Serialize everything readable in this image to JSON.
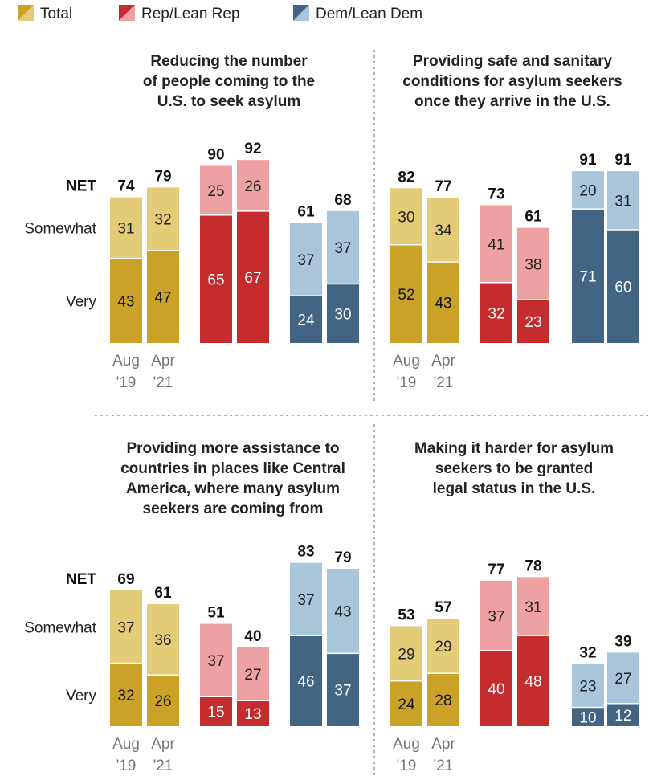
{
  "legend": {
    "total": "Total",
    "rep": "Rep/Lean Rep",
    "dem": "Dem/Lean Dem"
  },
  "colors": {
    "total_very": "#c9a227",
    "total_somewhat": "#e3cb77",
    "rep_very": "#c42c2e",
    "rep_somewhat": "#eea1a3",
    "dem_very": "#426583",
    "dem_somewhat": "#a8c5da"
  },
  "row_labels": {
    "net": "NET",
    "somewhat": "Somewhat",
    "very": "Very"
  },
  "chart_data": [
    {
      "type": "bar",
      "title": [
        "Reducing the number",
        "of people coming to the",
        "U.S. to seek asylum"
      ],
      "groups": [
        "Total",
        "Rep/Lean Rep",
        "Dem/Lean Dem"
      ],
      "periods": [
        "Aug '19",
        "Apr '21"
      ],
      "series": [
        {
          "name": "Very",
          "values": [
            [
              43,
              47
            ],
            [
              65,
              67
            ],
            [
              24,
              30
            ]
          ]
        },
        {
          "name": "Somewhat",
          "values": [
            [
              31,
              32
            ],
            [
              25,
              26
            ],
            [
              37,
              37
            ]
          ]
        }
      ],
      "net": [
        [
          74,
          79
        ],
        [
          90,
          92
        ],
        [
          61,
          68
        ]
      ],
      "ylim": [
        0,
        100
      ]
    },
    {
      "type": "bar",
      "title": [
        "Providing safe and sanitary",
        "conditions for asylum seekers",
        "once they arrive in the U.S."
      ],
      "groups": [
        "Total",
        "Rep/Lean Rep",
        "Dem/Lean Dem"
      ],
      "periods": [
        "Aug '19",
        "Apr '21"
      ],
      "series": [
        {
          "name": "Very",
          "values": [
            [
              52,
              43
            ],
            [
              32,
              23
            ],
            [
              71,
              60
            ]
          ]
        },
        {
          "name": "Somewhat",
          "values": [
            [
              30,
              34
            ],
            [
              41,
              38
            ],
            [
              20,
              31
            ]
          ]
        }
      ],
      "net": [
        [
          82,
          77
        ],
        [
          73,
          61
        ],
        [
          91,
          91
        ]
      ],
      "ylim": [
        0,
        100
      ]
    },
    {
      "type": "bar",
      "title": [
        "Providing more assistance to",
        "countries in places like Central",
        "America, where many asylum",
        "seekers are coming from"
      ],
      "groups": [
        "Total",
        "Rep/Lean Rep",
        "Dem/Lean Dem"
      ],
      "periods": [
        "Aug '19",
        "Apr '21"
      ],
      "series": [
        {
          "name": "Very",
          "values": [
            [
              32,
              26
            ],
            [
              15,
              13
            ],
            [
              46,
              37
            ]
          ]
        },
        {
          "name": "Somewhat",
          "values": [
            [
              37,
              36
            ],
            [
              37,
              27
            ],
            [
              37,
              43
            ]
          ]
        }
      ],
      "net": [
        [
          69,
          61
        ],
        [
          51,
          40
        ],
        [
          83,
          79
        ]
      ],
      "ylim": [
        0,
        100
      ]
    },
    {
      "type": "bar",
      "title": [
        "Making it harder for asylum",
        "seekers to be granted",
        "legal status in the U.S."
      ],
      "groups": [
        "Total",
        "Rep/Lean Rep",
        "Dem/Lean Dem"
      ],
      "periods": [
        "Aug '19",
        "Apr '21"
      ],
      "series": [
        {
          "name": "Very",
          "values": [
            [
              24,
              28
            ],
            [
              40,
              48
            ],
            [
              10,
              12
            ]
          ]
        },
        {
          "name": "Somewhat",
          "values": [
            [
              29,
              29
            ],
            [
              37,
              31
            ],
            [
              23,
              27
            ]
          ]
        }
      ],
      "net": [
        [
          53,
          57
        ],
        [
          77,
          78
        ],
        [
          32,
          39
        ]
      ],
      "ylim": [
        0,
        100
      ]
    }
  ]
}
